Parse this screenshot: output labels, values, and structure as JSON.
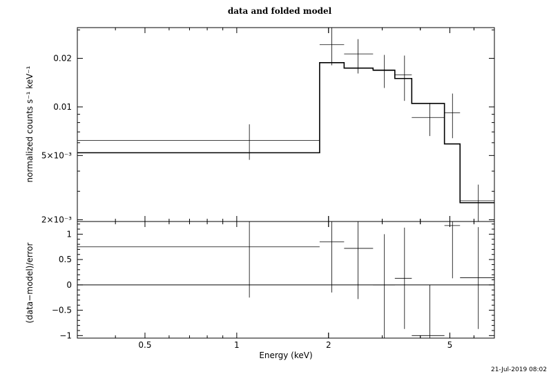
{
  "title": "data and folded model",
  "timestamp": "21-Jul-2019 08:02",
  "chart_data": [
    {
      "type": "scatter",
      "panel": "top",
      "xlabel": "Energy (keV)",
      "ylabel": "normalized counts s⁻¹ keV⁻¹",
      "xscale": "log",
      "yscale": "log",
      "xlim": [
        0.3,
        7.0
      ],
      "ylim": [
        0.00195,
        0.031
      ],
      "yticks": [
        {
          "value": 0.02,
          "label": "0.02"
        },
        {
          "value": 0.01,
          "label": "0.01"
        },
        {
          "value": 0.005,
          "label": "5×10⁻³"
        },
        {
          "value": 0.002,
          "label": "2×10⁻³"
        }
      ],
      "data_points": [
        {
          "xlo": 0.3,
          "xhi": 1.87,
          "x": 1.1,
          "y": 0.0062,
          "ylo": 0.0047,
          "yhi": 0.0078
        },
        {
          "xlo": 1.87,
          "xhi": 2.25,
          "x": 2.05,
          "y": 0.0243,
          "ylo": 0.0181,
          "yhi": 0.031
        },
        {
          "xlo": 2.25,
          "xhi": 2.8,
          "x": 2.5,
          "y": 0.0213,
          "ylo": 0.0161,
          "yhi": 0.0263
        },
        {
          "xlo": 2.8,
          "xhi": 3.3,
          "x": 3.05,
          "y": 0.0168,
          "ylo": 0.0131,
          "yhi": 0.021
        },
        {
          "xlo": 3.3,
          "xhi": 3.75,
          "x": 3.55,
          "y": 0.0158,
          "ylo": 0.0109,
          "yhi": 0.0208
        },
        {
          "xlo": 3.75,
          "xhi": 4.8,
          "x": 4.3,
          "y": 0.0086,
          "ylo": 0.0066,
          "yhi": 0.0106
        },
        {
          "xlo": 4.8,
          "xhi": 5.4,
          "x": 5.1,
          "y": 0.0092,
          "ylo": 0.0064,
          "yhi": 0.0121
        },
        {
          "xlo": 5.4,
          "xhi": 7.0,
          "x": 6.2,
          "y": 0.00262,
          "ylo": 0.0019,
          "yhi": 0.0033
        }
      ],
      "model_steps": [
        {
          "xlo": 0.3,
          "xhi": 1.87,
          "y": 0.0052
        },
        {
          "xlo": 1.87,
          "xhi": 2.25,
          "y": 0.0188
        },
        {
          "xlo": 2.25,
          "xhi": 2.8,
          "y": 0.0174
        },
        {
          "xlo": 2.8,
          "xhi": 3.3,
          "y": 0.0169
        },
        {
          "xlo": 3.3,
          "xhi": 3.75,
          "y": 0.015
        },
        {
          "xlo": 3.75,
          "xhi": 4.8,
          "y": 0.0105
        },
        {
          "xlo": 4.8,
          "xhi": 5.4,
          "y": 0.0059
        },
        {
          "xlo": 5.4,
          "xhi": 7.0,
          "y": 0.00255
        }
      ]
    },
    {
      "type": "scatter",
      "panel": "bottom",
      "xlabel": "Energy (keV)",
      "ylabel": "(data−model)/error",
      "xscale": "log",
      "yscale": "linear",
      "xlim": [
        0.3,
        7.0
      ],
      "ylim": [
        -1.05,
        1.25
      ],
      "xticks": [
        {
          "value": 0.5,
          "label": "0.5"
        },
        {
          "value": 1,
          "label": "1"
        },
        {
          "value": 2,
          "label": "2"
        },
        {
          "value": 5,
          "label": "5"
        }
      ],
      "yticks": [
        {
          "value": 1,
          "label": "1"
        },
        {
          "value": 0.5,
          "label": "0.5"
        },
        {
          "value": 0,
          "label": "0"
        },
        {
          "value": -0.5,
          "label": "−0.5"
        },
        {
          "value": -1,
          "label": "−1"
        }
      ],
      "residuals": [
        {
          "xlo": 0.3,
          "xhi": 1.87,
          "x": 1.1,
          "y": 0.75,
          "ylo": -0.25,
          "yhi": 1.25
        },
        {
          "xlo": 1.87,
          "xhi": 2.25,
          "x": 2.05,
          "y": 0.85,
          "ylo": -0.15,
          "yhi": 1.25
        },
        {
          "xlo": 2.25,
          "xhi": 2.8,
          "x": 2.5,
          "y": 0.72,
          "ylo": -0.28,
          "yhi": 1.25
        },
        {
          "xlo": 2.8,
          "xhi": 3.3,
          "x": 3.05,
          "y": 0.0,
          "ylo": -1.05,
          "yhi": 1.0
        },
        {
          "xlo": 3.3,
          "xhi": 3.75,
          "x": 3.55,
          "y": 0.13,
          "ylo": -0.87,
          "yhi": 1.13
        },
        {
          "xlo": 3.75,
          "xhi": 4.8,
          "x": 4.3,
          "y": -1.0,
          "ylo": -1.05,
          "yhi": 0.0
        },
        {
          "xlo": 4.8,
          "xhi": 5.4,
          "x": 5.1,
          "y": 1.17,
          "ylo": 0.13,
          "yhi": 1.25
        },
        {
          "xlo": 5.4,
          "xhi": 7.0,
          "x": 6.2,
          "y": 0.14,
          "ylo": -0.87,
          "yhi": 1.14
        }
      ]
    }
  ]
}
